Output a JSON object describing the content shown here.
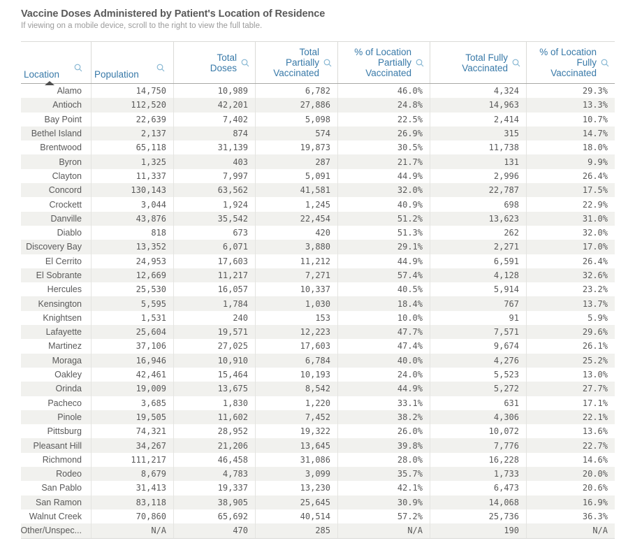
{
  "title": "Vaccine Doses Administered by Patient's Location of Residence",
  "subtitle": "If viewing on a mobile device, scroll to the right to view the full table.",
  "colors": {
    "header_text": "#3879a8",
    "search_icon": "#82b4d1",
    "cell_text": "#595959",
    "row_stripe": "#f1f1ee",
    "title_text": "#595959",
    "subtitle_text": "#9b9b9b",
    "sort_indicator": "#4d4d4d",
    "border_light": "#dadad7",
    "header_border": "#a9a9a6"
  },
  "table": {
    "columns": [
      {
        "key": "location",
        "label": "Location",
        "align": "left",
        "sorted": "asc",
        "search_icon": "search-icon"
      },
      {
        "key": "population",
        "label": "Population",
        "align": "left",
        "search_icon": "search-icon"
      },
      {
        "key": "total-doses",
        "label": "Total\nDoses",
        "align": "right",
        "search_icon": "search-icon"
      },
      {
        "key": "total-partially-vaccinated",
        "label": "Total\nPartially\nVaccinated",
        "align": "right",
        "search_icon": "search-icon"
      },
      {
        "key": "pct-location-partially-vaccinated",
        "label": "% of Location\nPartially\nVaccinated",
        "align": "right",
        "search_icon": "search-icon"
      },
      {
        "key": "total-fully-vaccinated",
        "label": "Total Fully\nVaccinated",
        "align": "right",
        "search_icon": "search-icon"
      },
      {
        "key": "pct-location-fully-vaccinated",
        "label": "% of Location\nFully\nVaccinated",
        "align": "right",
        "search_icon": "search-icon"
      }
    ]
  },
  "chart_data": {
    "type": "table",
    "columns": [
      "Location",
      "Population",
      "Total Doses",
      "Total Partially Vaccinated",
      "% of Location Partially Vaccinated",
      "Total Fully Vaccinated",
      "% of Location Fully Vaccinated"
    ],
    "sort": {
      "column": "Location",
      "direction": "ascending"
    },
    "rows": [
      [
        "Alamo",
        "14,750",
        "10,989",
        "6,782",
        "46.0%",
        "4,324",
        "29.3%"
      ],
      [
        "Antioch",
        "112,520",
        "42,201",
        "27,886",
        "24.8%",
        "14,963",
        "13.3%"
      ],
      [
        "Bay Point",
        "22,639",
        "7,402",
        "5,098",
        "22.5%",
        "2,414",
        "10.7%"
      ],
      [
        "Bethel Island",
        "2,137",
        "874",
        "574",
        "26.9%",
        "315",
        "14.7%"
      ],
      [
        "Brentwood",
        "65,118",
        "31,139",
        "19,873",
        "30.5%",
        "11,738",
        "18.0%"
      ],
      [
        "Byron",
        "1,325",
        "403",
        "287",
        "21.7%",
        "131",
        "9.9%"
      ],
      [
        "Clayton",
        "11,337",
        "7,997",
        "5,091",
        "44.9%",
        "2,996",
        "26.4%"
      ],
      [
        "Concord",
        "130,143",
        "63,562",
        "41,581",
        "32.0%",
        "22,787",
        "17.5%"
      ],
      [
        "Crockett",
        "3,044",
        "1,924",
        "1,245",
        "40.9%",
        "698",
        "22.9%"
      ],
      [
        "Danville",
        "43,876",
        "35,542",
        "22,454",
        "51.2%",
        "13,623",
        "31.0%"
      ],
      [
        "Diablo",
        "818",
        "673",
        "420",
        "51.3%",
        "262",
        "32.0%"
      ],
      [
        "Discovery Bay",
        "13,352",
        "6,071",
        "3,880",
        "29.1%",
        "2,271",
        "17.0%"
      ],
      [
        "El Cerrito",
        "24,953",
        "17,603",
        "11,212",
        "44.9%",
        "6,591",
        "26.4%"
      ],
      [
        "El Sobrante",
        "12,669",
        "11,217",
        "7,271",
        "57.4%",
        "4,128",
        "32.6%"
      ],
      [
        "Hercules",
        "25,530",
        "16,057",
        "10,337",
        "40.5%",
        "5,914",
        "23.2%"
      ],
      [
        "Kensington",
        "5,595",
        "1,784",
        "1,030",
        "18.4%",
        "767",
        "13.7%"
      ],
      [
        "Knightsen",
        "1,531",
        "240",
        "153",
        "10.0%",
        "91",
        "5.9%"
      ],
      [
        "Lafayette",
        "25,604",
        "19,571",
        "12,223",
        "47.7%",
        "7,571",
        "29.6%"
      ],
      [
        "Martinez",
        "37,106",
        "27,025",
        "17,603",
        "47.4%",
        "9,674",
        "26.1%"
      ],
      [
        "Moraga",
        "16,946",
        "10,910",
        "6,784",
        "40.0%",
        "4,276",
        "25.2%"
      ],
      [
        "Oakley",
        "42,461",
        "15,464",
        "10,193",
        "24.0%",
        "5,523",
        "13.0%"
      ],
      [
        "Orinda",
        "19,009",
        "13,675",
        "8,542",
        "44.9%",
        "5,272",
        "27.7%"
      ],
      [
        "Pacheco",
        "3,685",
        "1,830",
        "1,220",
        "33.1%",
        "631",
        "17.1%"
      ],
      [
        "Pinole",
        "19,505",
        "11,602",
        "7,452",
        "38.2%",
        "4,306",
        "22.1%"
      ],
      [
        "Pittsburg",
        "74,321",
        "28,952",
        "19,322",
        "26.0%",
        "10,072",
        "13.6%"
      ],
      [
        "Pleasant Hill",
        "34,267",
        "21,206",
        "13,645",
        "39.8%",
        "7,776",
        "22.7%"
      ],
      [
        "Richmond",
        "111,217",
        "46,458",
        "31,086",
        "28.0%",
        "16,228",
        "14.6%"
      ],
      [
        "Rodeo",
        "8,679",
        "4,783",
        "3,099",
        "35.7%",
        "1,733",
        "20.0%"
      ],
      [
        "San Pablo",
        "31,413",
        "19,337",
        "13,230",
        "42.1%",
        "6,473",
        "20.6%"
      ],
      [
        "San Ramon",
        "83,118",
        "38,905",
        "25,645",
        "30.9%",
        "14,068",
        "16.9%"
      ],
      [
        "Walnut Creek",
        "70,860",
        "65,692",
        "40,514",
        "57.2%",
        "25,736",
        "36.3%"
      ],
      [
        "Other/Unspec...",
        "N/A",
        "470",
        "285",
        "N/A",
        "190",
        "N/A"
      ]
    ]
  }
}
